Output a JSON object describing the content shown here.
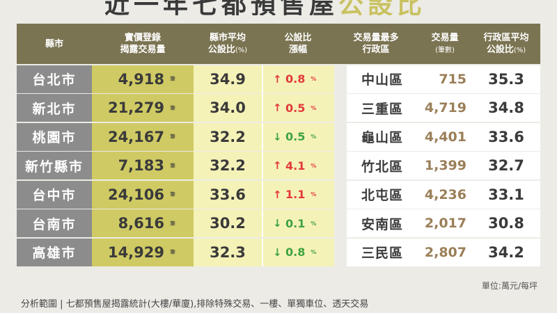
{
  "title": {
    "main": "近一年七都預售屋",
    "highlight": "公設比"
  },
  "headers": {
    "city": "縣市",
    "transactions_1": "實價登錄",
    "transactions_2": "揭露交易量",
    "city_ratio_1": "縣市平均",
    "city_ratio_2": "公設比",
    "city_ratio_unit": "(%)",
    "increase_1": "公設比",
    "increase_2": "漲幅",
    "top_district_1": "交易量最多",
    "top_district_2": "行政區",
    "volume_1": "交易量",
    "volume_unit": "(筆數)",
    "district_ratio_1": "行政區平均",
    "district_ratio_2": "公設比",
    "district_ratio_unit": "(%)"
  },
  "unit_label": "筆",
  "pct_label": "%",
  "rows": [
    {
      "city": "台北市",
      "transactions": "4,918",
      "ratio": "34.9",
      "direction": "up",
      "arrow": "↑",
      "change": "0.8",
      "district": "中山區",
      "volume": "715",
      "district_ratio": "35.3"
    },
    {
      "city": "新北市",
      "transactions": "21,279",
      "ratio": "34.0",
      "direction": "up",
      "arrow": "↑",
      "change": "0.5",
      "district": "三重區",
      "volume": "4,719",
      "district_ratio": "34.8"
    },
    {
      "city": "桃園市",
      "transactions": "24,167",
      "ratio": "32.2",
      "direction": "down",
      "arrow": "↓",
      "change": "0.5",
      "district": "龜山區",
      "volume": "4,401",
      "district_ratio": "33.6"
    },
    {
      "city": "新竹縣市",
      "transactions": "7,183",
      "ratio": "32.2",
      "direction": "up",
      "arrow": "↑",
      "change": "4.1",
      "district": "竹北區",
      "volume": "1,399",
      "district_ratio": "32.7"
    },
    {
      "city": "台中市",
      "transactions": "24,106",
      "ratio": "33.6",
      "direction": "up",
      "arrow": "↑",
      "change": "1.1",
      "district": "北屯區",
      "volume": "4,236",
      "district_ratio": "33.1"
    },
    {
      "city": "台南市",
      "transactions": "8,616",
      "ratio": "30.2",
      "direction": "down",
      "arrow": "↓",
      "change": "0.1",
      "district": "安南區",
      "volume": "2,017",
      "district_ratio": "30.8"
    },
    {
      "city": "高雄市",
      "transactions": "14,929",
      "ratio": "32.3",
      "direction": "down",
      "arrow": "↓",
      "change": "0.8",
      "district": "三民區",
      "volume": "2,807",
      "district_ratio": "34.2"
    }
  ],
  "footer": {
    "unit_note": "單位:萬元/每坪",
    "scope_note": "分析範圍 | 七都預售屋揭露統計(大樓/華廈),排除特殊交易、一樓、單獨車位、透天交易"
  },
  "colors": {
    "header_bg": "#7b7452",
    "city_bg": "#8c8c8c",
    "transactions_bg": "#cfca64",
    "ratio_bg": "#f5f2b8",
    "up": "#e23a3a",
    "down": "#3fa340",
    "volume_text": "#9a7e58"
  }
}
